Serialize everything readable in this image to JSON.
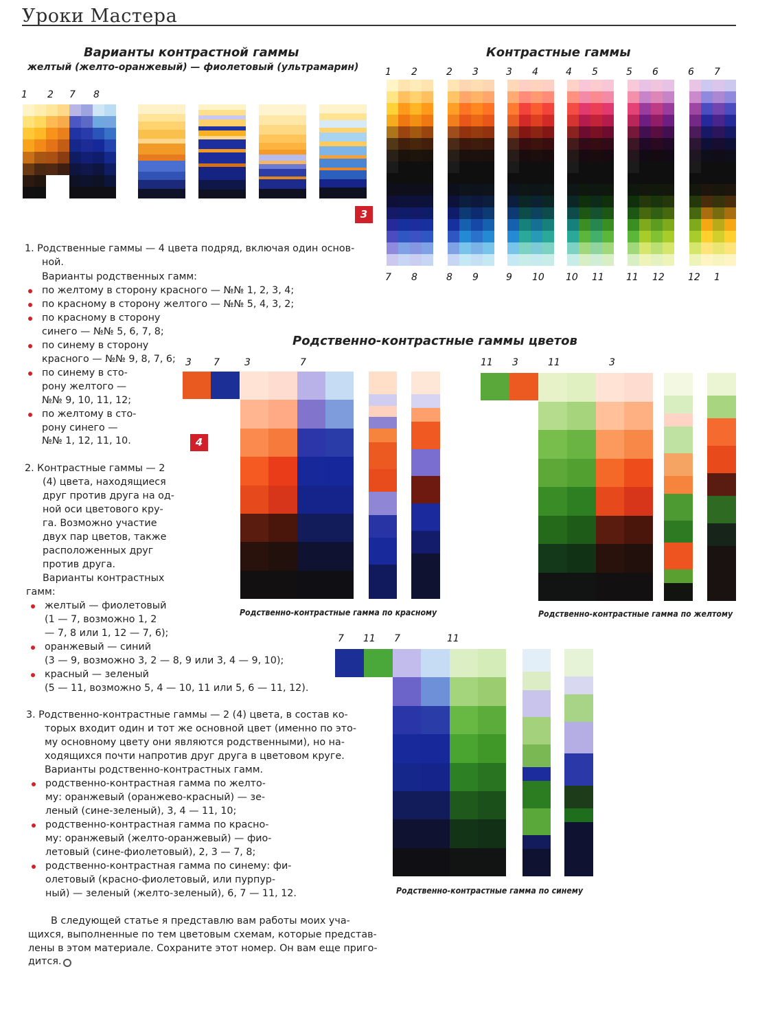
{
  "header": {
    "section_title": "Уроки Мастера"
  },
  "headings": {
    "variants_title": "Варианты контрастной гаммы",
    "variants_subtitle": "желтый (желто-оранжевый) — фиолетовый (ультрамарин)",
    "contrast_title": "Контрастные гаммы",
    "related_contrast_title": "Родственно-контрастные гаммы цветов"
  },
  "figure_badges": {
    "fig3": "3",
    "fig4": "4"
  },
  "variants_numbers": [
    "1",
    "2",
    "7",
    "8"
  ],
  "contrast_top_numbers": [
    "1",
    "2",
    "2",
    "3",
    "3",
    "4",
    "4",
    "5",
    "5",
    "6",
    "6",
    "7"
  ],
  "contrast_bottom_numbers": [
    "7",
    "8",
    "8",
    "9",
    "9",
    "10",
    "10",
    "11",
    "11",
    "12",
    "12",
    "1"
  ],
  "rc_red": {
    "numbers": [
      "3",
      "7",
      "3",
      "7"
    ],
    "caption": "Родственно-контрастные гамма по красному"
  },
  "rc_yellow": {
    "numbers": [
      "11",
      "3",
      "11",
      "3"
    ],
    "caption": "Родственно-контрастные гамма по желтому"
  },
  "rc_blue": {
    "numbers": [
      "7",
      "11",
      "7",
      "11"
    ],
    "caption": "Родственно-контрастные гамма по синему"
  },
  "body": {
    "lines": [
      "1.  Родственные гаммы — 4 цвета подряд, включая один основ-",
      "ной.",
      "Варианты родственных гамм:",
      "по желтому в сторону красного — №№ 1, 2, 3, 4;",
      "по красному в сторону желтого — №№ 5, 4, 3, 2;",
      "по красному в сторону",
      "синего — №№ 5, 6, 7, 8;",
      "по синему в сторону",
      "красного — №№ 9, 8, 7, 6;",
      "по синему в сто-",
      "рону желтого —",
      "№№ 9, 10, 11, 12;",
      "по желтому в сто-",
      "рону синего —",
      "№№ 1, 12, 11, 10.",
      "2.  Контрастные гаммы — 2",
      "(4) цвета, находящиеся",
      "друг против друга на од-",
      "ной оси цветового кру-",
      "га.  Возможно  участие",
      "двух пар цветов, также",
      "расположенных      друг",
      "против друга.",
      "Варианты   контрастных",
      "гамм:",
      "желтый — фиолетовый",
      "(1 — 7, возможно 1, 2",
      "— 7, 8 или 1, 12 — 7, 6);",
      "оранжевый — синий",
      "(3 — 9, возможно 3, 2 — 8, 9 или 3, 4 — 9, 10);",
      "красный — зеленый",
      "(5 — 11, возможно 5, 4 — 10, 11 или 5, 6 — 11, 12).",
      "3.  Родственно-контрастные гаммы — 2 (4) цвета, в состав ко-",
      "торых входит один и тот же основной цвет (именно по это-",
      "му основному цвету они являются родственными), но на-",
      "ходящихся почти напротив друг друга в цветовом круге.",
      "Варианты родственно-контрастных гамм.",
      "родственно-контрастная гамма по желто-",
      "му: оранжевый (оранжево-красный) — зе-",
      "леный (сине-зеленый), 3, 4 — 11, 10;",
      "родственно-контрастная гамма по красно-",
      "му: оранжевый (желто-оранжевый) — фио-",
      "летовый (сине-фиолетовый), 2, 3 — 7, 8;",
      "родственно-контрастная гамма по синему: фи-",
      "олетовый (красно-фиолетовый, или пурпур-",
      "ный) — зеленый (желто-зеленый), 6, 7 — 11, 12.",
      "В следующей статье я представлю вам работы моих уча-",
      "щихся, выполненные по тем цветовым схемам, которые представ-",
      "лены в этом материале. Сохраните этот номер. Он вам еще приго-",
      "дится."
    ]
  }
}
